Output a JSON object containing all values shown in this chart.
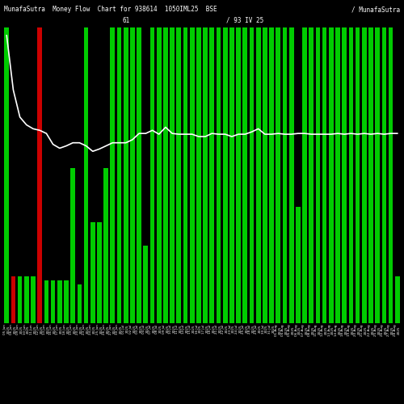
{
  "title": "MunafaSutra  Money Flow  Chart for 938614  1050IML25  BSE",
  "title_right": "/ MunafaSutra",
  "background_color": "#000000",
  "bar_color_positive": "#00cc00",
  "bar_color_negative": "#cc0000",
  "line_color": "#ffffff",
  "bar_width": 0.7,
  "categories": [
    "05 Jun\n2025",
    "06 Jun\n2025",
    "09 Jun\n2025",
    "10 Jun\n2025",
    "11 Jun\n2025",
    "12 Jun\n2025",
    "13 Jun\n2025",
    "16 Jun\n2025",
    "17 Jun\n2025",
    "18 Jun\n2025",
    "19 Jun\n2025",
    "20 Jun\n2025",
    "23 Jun\n2025",
    "24 Jun\n2025",
    "25 Jun\n2025",
    "26 Jun\n2025",
    "27 Jun\n2025",
    "30 Jun\n2025",
    "01 Jul\n2025",
    "02 Jul\n2025",
    "03 Jul\n2025",
    "04 Jul\n2025",
    "07 Jul\n2025",
    "08 Jul\n2025",
    "09 Jul\n2025",
    "10 Jul\n2025",
    "11 Jul\n2025",
    "14 Jul\n2025",
    "15 Jul\n2025",
    "16 Jul\n2025",
    "17 Jul\n2025",
    "18 Jul\n2025",
    "21 Jul\n2025",
    "22 Jul\n2025",
    "23 Jul\n2025",
    "24 Jul\n2025",
    "25 Jul\n2025",
    "28 Jul\n2025",
    "29 Jul\n2025",
    "30 Jul\n2025",
    "31 Jul\n2025",
    "01 Aug\n2025",
    "04 Aug\n2025",
    "05 Aug\n2025",
    "06 Aug\n2025",
    "07 Aug\n2025",
    "08 Aug\n2025",
    "11 Aug\n2025",
    "12 Aug\n2025",
    "13 Aug\n2025",
    "14 Aug\n2025",
    "18 Aug\n2025",
    "19 Aug\n2025",
    "20 Aug\n2025",
    "21 Aug\n2025",
    "22 Aug\n2025",
    "25 Aug\n2025",
    "26 Aug\n2025",
    "27 Aug\n2025",
    "28 Aug\n2025"
  ],
  "bar_values": [
    380,
    60,
    60,
    60,
    60,
    380,
    55,
    55,
    55,
    55,
    200,
    50,
    380,
    130,
    130,
    200,
    380,
    380,
    380,
    380,
    380,
    100,
    380,
    380,
    380,
    380,
    380,
    380,
    380,
    380,
    380,
    380,
    380,
    380,
    380,
    380,
    380,
    380,
    380,
    380,
    380,
    380,
    380,
    380,
    150,
    380,
    380,
    380,
    380,
    380,
    380,
    380,
    380,
    380,
    380,
    380,
    380,
    380,
    380,
    60
  ],
  "bar_colors": [
    "green",
    "red",
    "green",
    "green",
    "green",
    "red",
    "green",
    "green",
    "green",
    "green",
    "green",
    "green",
    "green",
    "green",
    "green",
    "green",
    "green",
    "green",
    "green",
    "green",
    "green",
    "green",
    "green",
    "green",
    "green",
    "green",
    "green",
    "green",
    "green",
    "green",
    "green",
    "green",
    "green",
    "green",
    "green",
    "green",
    "green",
    "green",
    "green",
    "green",
    "green",
    "green",
    "green",
    "green",
    "green",
    "green",
    "green",
    "green",
    "green",
    "green",
    "green",
    "green",
    "green",
    "green",
    "green",
    "green",
    "green",
    "green",
    "green",
    "green"
  ],
  "line_values": [
    370,
    300,
    265,
    255,
    250,
    248,
    244,
    230,
    225,
    228,
    232,
    232,
    228,
    221,
    224,
    228,
    232,
    232,
    232,
    236,
    244,
    244,
    248,
    243,
    252,
    244,
    243,
    243,
    243,
    240,
    240,
    244,
    243,
    243,
    240,
    243,
    243,
    246,
    250,
    243,
    243,
    244,
    243,
    243,
    244,
    244,
    243,
    243,
    243,
    243,
    244,
    243,
    244,
    243,
    244,
    243,
    244,
    243,
    244,
    244
  ],
  "ylim": [
    0,
    400
  ],
  "figsize": [
    5.0,
    5.0
  ],
  "dpi": 100
}
